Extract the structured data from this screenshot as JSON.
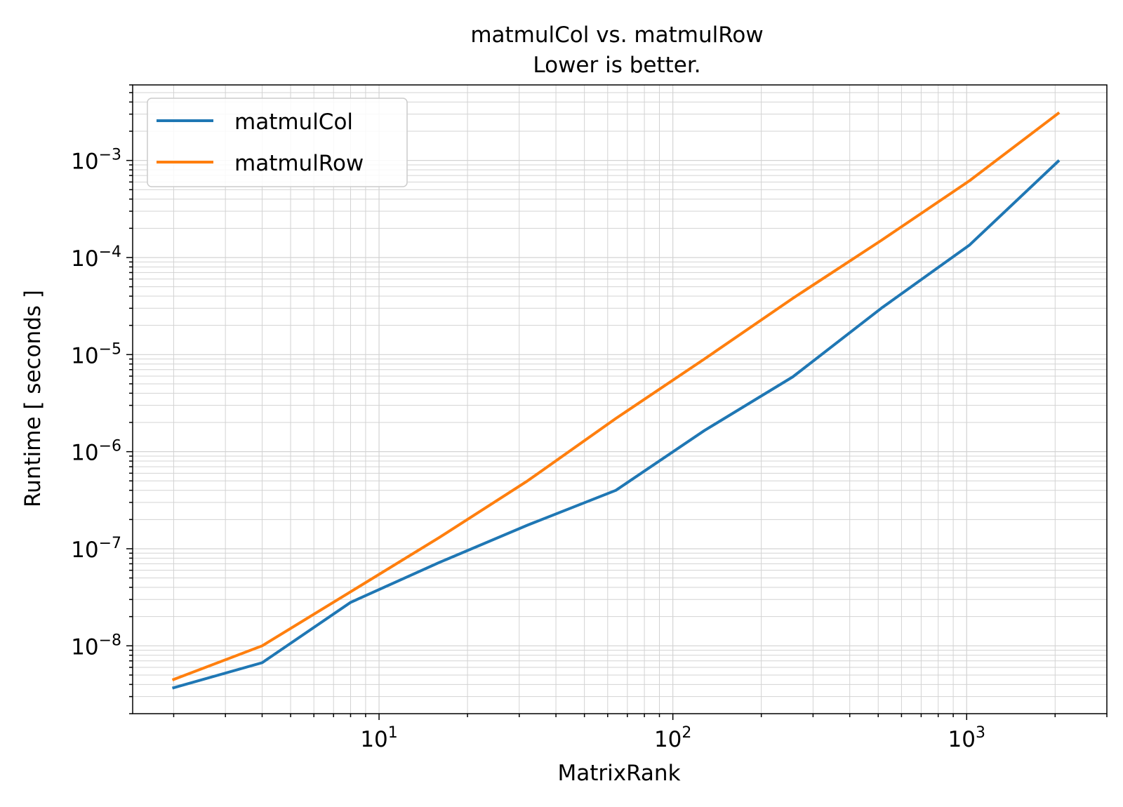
{
  "chart_data": {
    "type": "line",
    "title": "matmulCol vs. matmulRow",
    "subtitle": "Lower is better.",
    "xlabel": "MatrixRank",
    "ylabel": "Runtime [ seconds ]",
    "xscale": "log",
    "yscale": "log",
    "xlim": [
      1.45,
      3000
    ],
    "ylim": [
      2e-09,
      0.006
    ],
    "grid": "on (major and minor)",
    "legend_placement": "top-left",
    "x_ticks": [
      {
        "base": "10",
        "exp": "1",
        "value": 10
      },
      {
        "base": "10",
        "exp": "2",
        "value": 100
      },
      {
        "base": "10",
        "exp": "3",
        "value": 1000
      }
    ],
    "y_ticks": [
      {
        "base": "10",
        "exp": "−8",
        "value": 1e-08
      },
      {
        "base": "10",
        "exp": "−7",
        "value": 1e-07
      },
      {
        "base": "10",
        "exp": "−6",
        "value": 1e-06
      },
      {
        "base": "10",
        "exp": "−5",
        "value": 1e-05
      },
      {
        "base": "10",
        "exp": "−4",
        "value": 0.0001
      },
      {
        "base": "10",
        "exp": "−3",
        "value": 0.001
      }
    ],
    "x": [
      2,
      4,
      8,
      16,
      32,
      64,
      128,
      256,
      512,
      1024,
      2048
    ],
    "series": [
      {
        "name": "matmulCol",
        "color": "#1f77b4",
        "values": [
          3.7e-09,
          6.7e-09,
          2.8e-08,
          7.2e-08,
          1.75e-07,
          4e-07,
          1.65e-06,
          5.9e-06,
          3e-05,
          0.000135,
          0.00098
        ]
      },
      {
        "name": "matmulRow",
        "color": "#ff7f0e",
        "values": [
          4.5e-09,
          1e-08,
          3.6e-08,
          1.3e-07,
          5e-07,
          2.2e-06,
          9e-06,
          3.8e-05,
          0.00015,
          0.00062,
          0.00305
        ]
      }
    ]
  }
}
